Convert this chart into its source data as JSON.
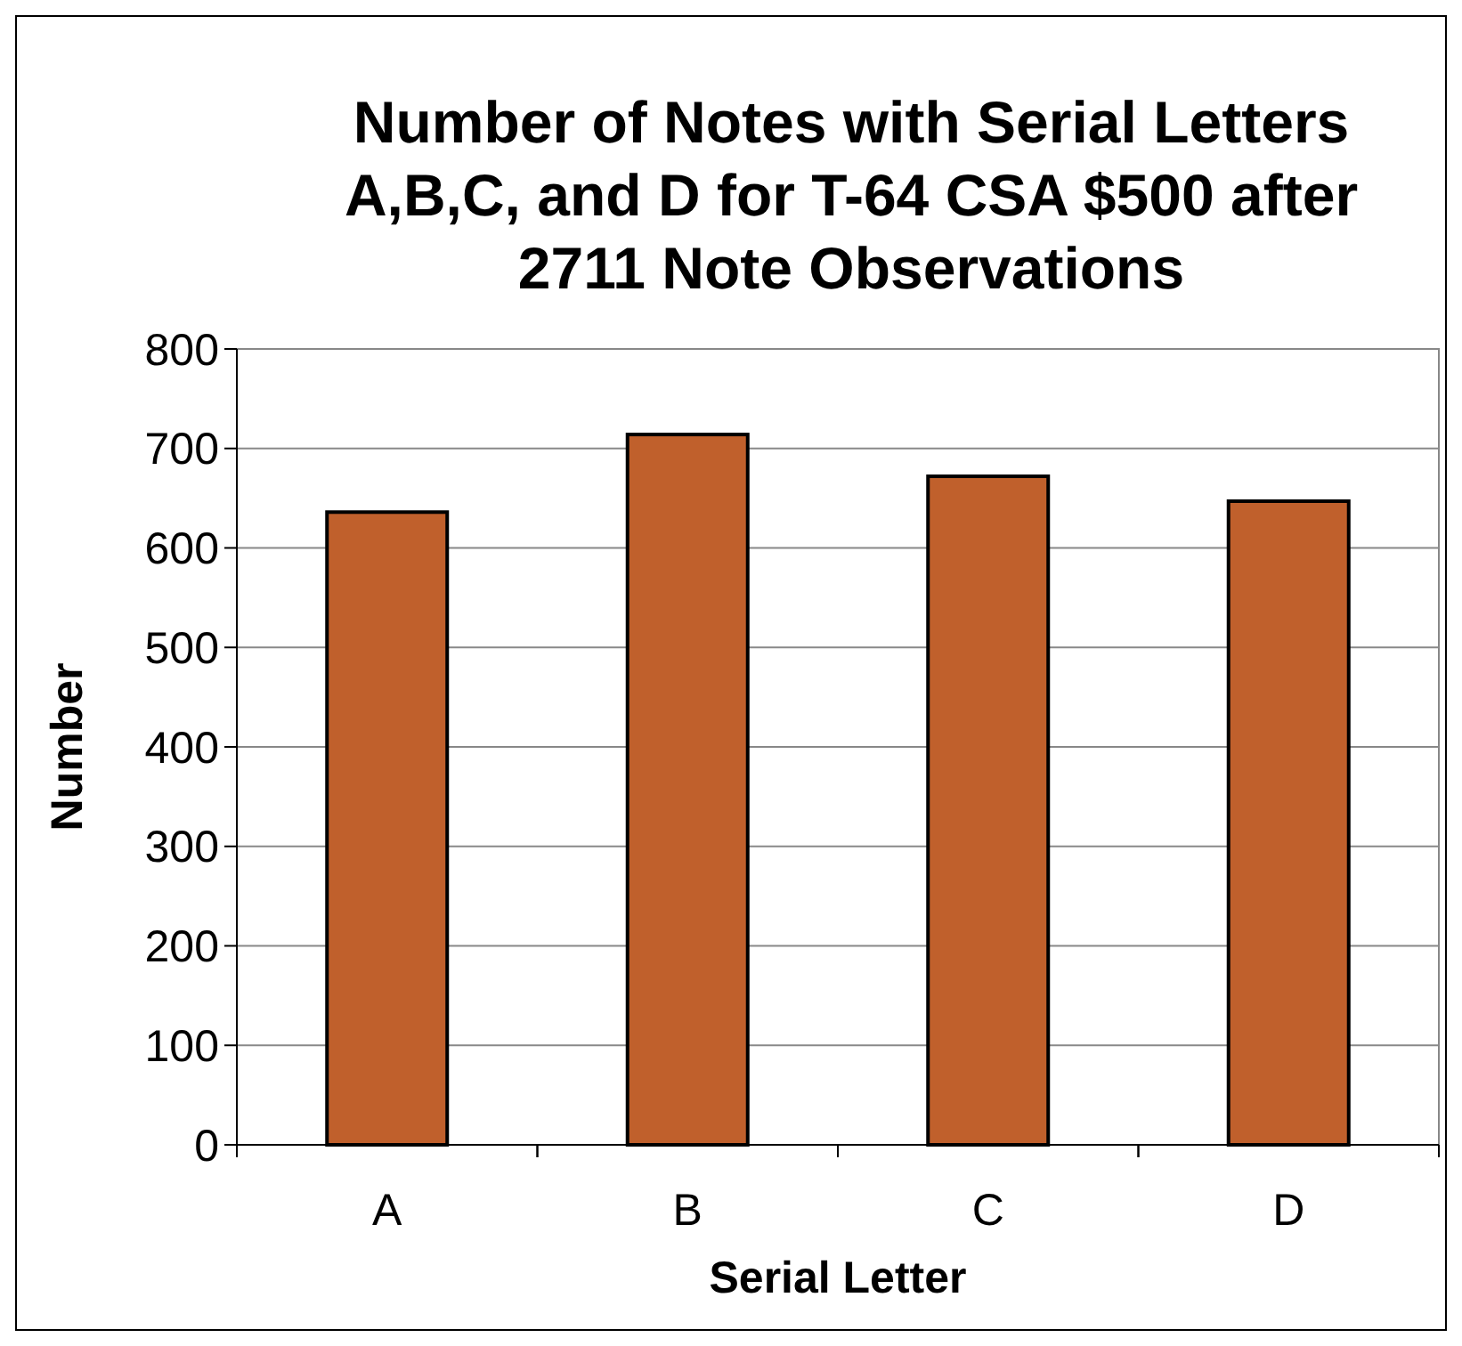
{
  "chart_data": {
    "type": "bar",
    "title": "Number of Notes with Serial Letters A,B,C, and D for T-64 CSA $500 after 2711 Note Observations",
    "xlabel": "Serial Letter",
    "ylabel": "Number",
    "categories": [
      "A",
      "B",
      "C",
      "D"
    ],
    "values": [
      636,
      714,
      672,
      647
    ],
    "color": "#c0602c",
    "ylim": [
      0,
      800
    ],
    "yticks": [
      0,
      100,
      200,
      300,
      400,
      500,
      600,
      700,
      800
    ],
    "grid": "y"
  }
}
